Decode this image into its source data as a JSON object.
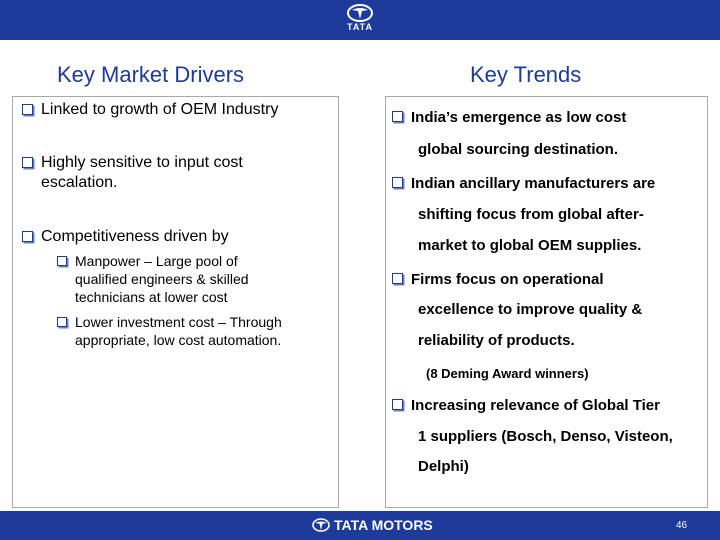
{
  "header": {
    "logo_text": "TATA"
  },
  "left": {
    "title": "Key Market Drivers",
    "bullet1": "Linked to growth of OEM Industry",
    "bullet2_line1": "Highly sensitive to input cost",
    "bullet2_line2": "escalation.",
    "bullet3": "Competitiveness driven by",
    "sub1_line1": "Manpower – Large pool of",
    "sub1_line2": "qualified engineers & skilled",
    "sub1_line3": "technicians at lower cost",
    "sub2_line1": "Lower investment cost – Through",
    "sub2_line2": "appropriate, low cost automation."
  },
  "right": {
    "title": "Key Trends",
    "b1_line1": "India’s emergence as low cost",
    "b1_line2": "global sourcing destination.",
    "b2_line1": "Indian ancillary manufacturers are",
    "b2_line2": "shifting focus from global after-",
    "b2_line3": "market to global OEM supplies.",
    "b3_line1": "Firms focus on operational",
    "b3_line2": "excellence to improve quality &",
    "b3_line3": "reliability of products.",
    "b3_note": "(8 Deming Award winners)",
    "b4_line1": "Increasing relevance of Global Tier",
    "b4_line2": "1 suppliers (Bosch, Denso, Visteon,",
    "b4_line3": "Delphi)"
  },
  "footer": {
    "logo_text": "TATA MOTORS",
    "page_number": "46"
  },
  "colors": {
    "brand_blue": "#1d3b9b"
  },
  "icons": {
    "bullet": "checkbox-bullet-icon",
    "logo": "tata-logo-icon"
  }
}
